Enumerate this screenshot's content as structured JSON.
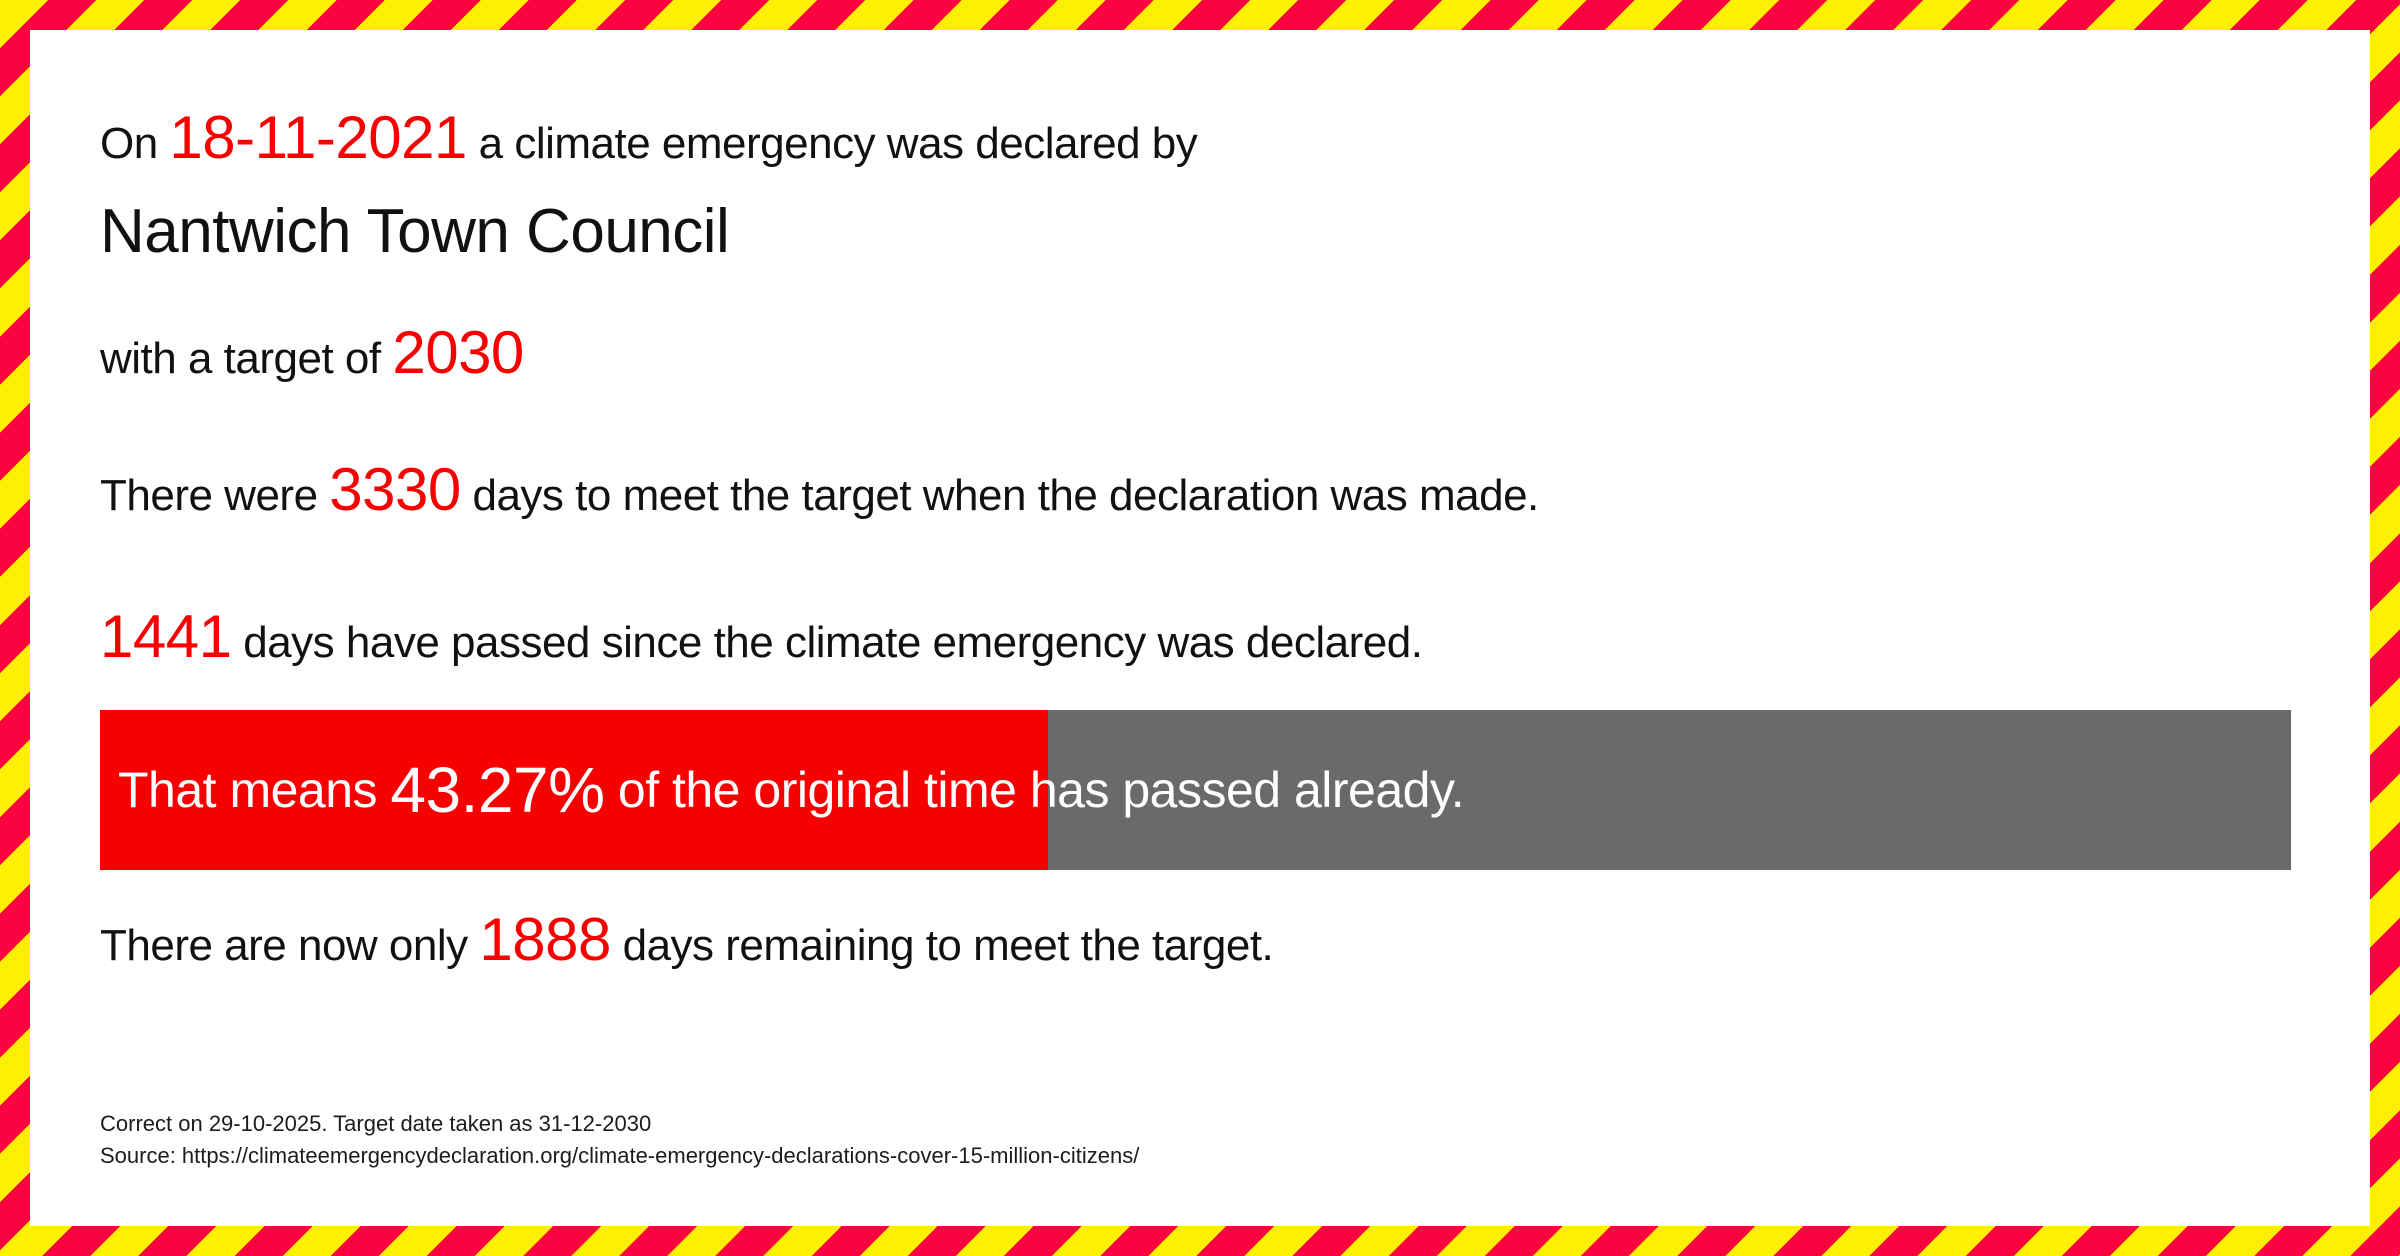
{
  "declaration": {
    "on": "On ",
    "date": "18-11-2021",
    "declared_by": " a climate emergency was declared by",
    "council": "Nantwich Town Council",
    "target_prefix": "with a target of ",
    "target_year": "2030"
  },
  "days_to_target": {
    "prefix": "There were ",
    "value": "3330",
    "suffix": " days to meet the target when the declaration was made."
  },
  "days_passed": {
    "value": "1441",
    "suffix": " days have passed since the climate emergency was declared."
  },
  "progress": {
    "prefix": "That means ",
    "percent_label": "43.27%",
    "percent_value": 43.27,
    "suffix": " of the original time has passed already."
  },
  "days_remaining": {
    "prefix": "There are now only ",
    "value": "1888",
    "suffix": " days remaining to meet the target."
  },
  "footer": {
    "line1": "Correct on 29-10-2025. Target date taken as 31-12-2030",
    "line2": "Source: https://climateemergencydeclaration.org/climate-emergency-declarations-cover-15-million-citizens/"
  },
  "colors": {
    "text_red": "#f80000",
    "bar_red": "#f80000",
    "bar_gray": "#6a6a6a",
    "border_red": "#fb0240",
    "border_yellow": "#ffef00"
  }
}
